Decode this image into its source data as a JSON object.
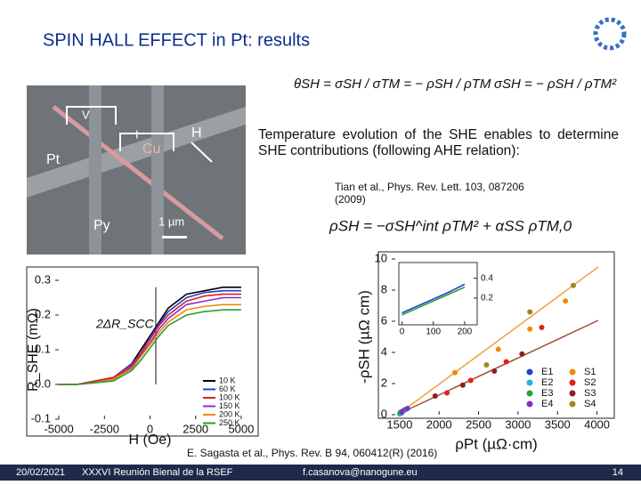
{
  "header": {
    "title": "SPIN HALL EFFECT in Pt: results"
  },
  "formulas": {
    "theta": "θSH = σSH / σTM = − ρSH / ρTM",
    "sigma": "σSH = − ρSH / ρTM²",
    "model": "ρSH = −σSH^int ρTM² + αSS ρTM,0"
  },
  "image": {
    "labels": {
      "v": "V",
      "i": "I",
      "h": "H",
      "cu": "Cu",
      "pt": "Pt",
      "py": "Py",
      "scale": "1 µm"
    }
  },
  "text": {
    "paragraph": "Temperature evolution of the SHE enables to determine SHE contributions (following AHE relation):",
    "citation1": "Tian et al., Phys. Rev. Lett. 103, 087206 (2009)",
    "citation2": "E. Sagasta et al., Phys. Rev. B 94, 060412(R) (2016)"
  },
  "footer": {
    "date": "20/02/2021",
    "event": "XXXVI Reunión Bienal de la RSEF",
    "email": "f.casanova@nanogune.eu",
    "page": "14"
  },
  "chart_data": [
    {
      "type": "line",
      "xlabel": "H (Oe)",
      "ylabel": "R_SHE (mΩ)",
      "annotation": "2ΔR_SCC",
      "x": [
        -5000,
        -4000,
        -3000,
        -2000,
        -1000,
        -500,
        0,
        500,
        1000,
        2000,
        3000,
        4000,
        5000
      ],
      "xlim": [
        -5200,
        5200
      ],
      "ylim": [
        -0.1,
        0.3
      ],
      "xticks": [
        -5000,
        -2500,
        0,
        2500,
        5000
      ],
      "yticks": [
        -0.1,
        {
          "value": 0,
          "label": "0.0"
        },
        0.1,
        0.2,
        0.3
      ],
      "series": [
        {
          "name": "10 K",
          "color": "#000000",
          "values": [
            0,
            0,
            0.01,
            0.02,
            0.06,
            0.1,
            0.14,
            0.18,
            0.22,
            0.26,
            0.27,
            0.28,
            0.28
          ]
        },
        {
          "name": "60 K",
          "color": "#1f3fd6",
          "values": [
            0,
            0,
            0.01,
            0.02,
            0.06,
            0.09,
            0.135,
            0.175,
            0.21,
            0.25,
            0.265,
            0.27,
            0.27
          ]
        },
        {
          "name": "100 K",
          "color": "#e0201c",
          "values": [
            0,
            0,
            0.01,
            0.02,
            0.055,
            0.09,
            0.13,
            0.17,
            0.2,
            0.24,
            0.255,
            0.26,
            0.26
          ]
        },
        {
          "name": "150 K",
          "color": "#8a2bd0",
          "values": [
            0,
            0,
            0.005,
            0.015,
            0.05,
            0.085,
            0.12,
            0.16,
            0.19,
            0.23,
            0.24,
            0.25,
            0.25
          ]
        },
        {
          "name": "200 K",
          "color": "#f08a00",
          "values": [
            0,
            0,
            0.005,
            0.015,
            0.045,
            0.08,
            0.115,
            0.15,
            0.18,
            0.215,
            0.225,
            0.23,
            0.23
          ]
        },
        {
          "name": "250 K",
          "color": "#2e9e2e",
          "values": [
            0,
            0,
            0.005,
            0.01,
            0.04,
            0.07,
            0.105,
            0.14,
            0.17,
            0.2,
            0.21,
            0.215,
            0.215
          ]
        }
      ]
    },
    {
      "type": "scatter",
      "xlabel": "ρPt (µΩ·cm)",
      "ylabel": "-ρSH (µΩ cm)",
      "xlim": [
        1400,
        4050
      ],
      "ylim": [
        0,
        10
      ],
      "xticks": [
        1500,
        2000,
        2500,
        3000,
        3500,
        4000
      ],
      "yticks": [
        0,
        2,
        4,
        6,
        8,
        10
      ],
      "series": [
        {
          "name": "E1",
          "color": "#1f3fd6",
          "x": [
            1520,
            1560
          ],
          "values": [
            0.1,
            0.3
          ]
        },
        {
          "name": "E2",
          "color": "#22b5d6",
          "x": [
            1500,
            1540
          ],
          "values": [
            0.05,
            0.2
          ]
        },
        {
          "name": "E3",
          "color": "#2e9e2e",
          "x": [
            1510,
            1580
          ],
          "values": [
            0.15,
            0.35
          ]
        },
        {
          "name": "E4",
          "color": "#8a2bd0",
          "x": [
            1530,
            1600
          ],
          "values": [
            0.2,
            0.4
          ]
        },
        {
          "name": "S1",
          "color": "#f08a00",
          "x": [
            2200,
            2750,
            3150,
            3600
          ],
          "values": [
            2.7,
            4.2,
            5.5,
            7.3
          ]
        },
        {
          "name": "S2",
          "color": "#e0201c",
          "x": [
            2100,
            2400,
            2850,
            3300
          ],
          "values": [
            1.4,
            2.2,
            3.4,
            5.6
          ]
        },
        {
          "name": "S3",
          "color": "#8b2020",
          "x": [
            1950,
            2300,
            2700,
            3050
          ],
          "values": [
            1.2,
            1.9,
            2.8,
            3.9
          ]
        },
        {
          "name": "S4",
          "color": "#9a8a20",
          "x": [
            2600,
            3150,
            3700
          ],
          "values": [
            3.2,
            6.6,
            8.3
          ]
        }
      ]
    },
    {
      "type": "line",
      "x": [
        0,
        50,
        100,
        150,
        200
      ],
      "xlim": [
        -10,
        240
      ],
      "ylim": [
        -0.07,
        0.55
      ],
      "xticks": [
        0,
        100,
        200
      ],
      "yticks": [
        0.2,
        0.4
      ],
      "series": [
        {
          "color": "#1f3fd6",
          "values": [
            0.05,
            0.12,
            0.19,
            0.26,
            0.34
          ]
        },
        {
          "color": "#2e9e2e",
          "values": [
            0.03,
            0.1,
            0.17,
            0.24,
            0.31
          ]
        }
      ]
    }
  ]
}
